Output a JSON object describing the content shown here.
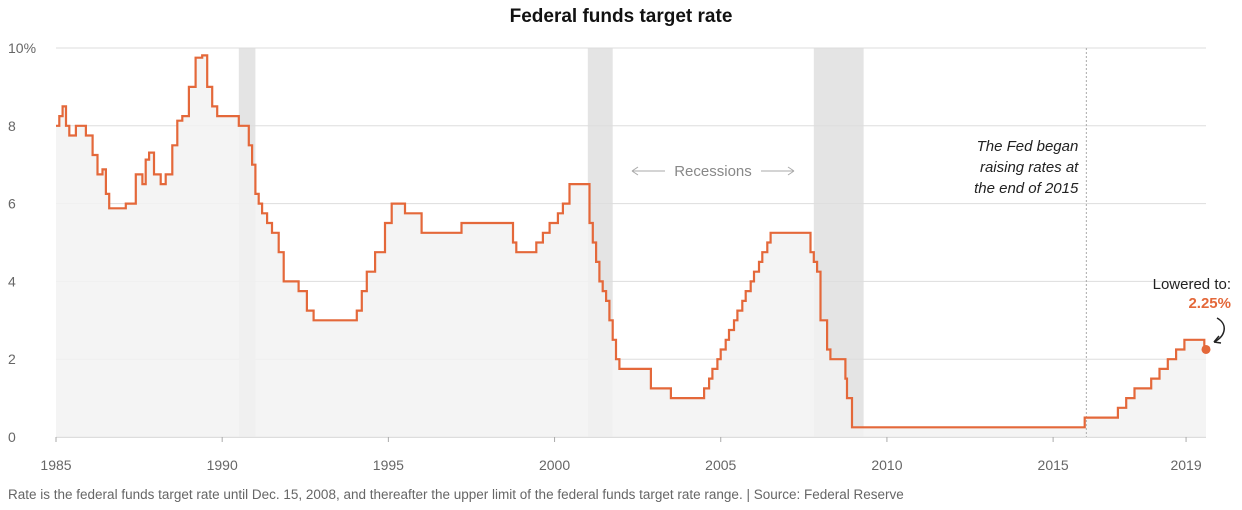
{
  "chart_data": {
    "type": "line",
    "title": "Federal funds target rate",
    "xlabel": "",
    "ylabel": "",
    "xlim": [
      1985,
      2019.6
    ],
    "ylim": [
      0,
      10
    ],
    "y_ticks": [
      {
        "value": 0,
        "label": "0"
      },
      {
        "value": 2,
        "label": "2"
      },
      {
        "value": 4,
        "label": "4"
      },
      {
        "value": 6,
        "label": "6"
      },
      {
        "value": 8,
        "label": "8"
      },
      {
        "value": 10,
        "label": "10%"
      }
    ],
    "x_ticks": [
      {
        "value": 1985,
        "label": "1985"
      },
      {
        "value": 1990,
        "label": "1990"
      },
      {
        "value": 1995,
        "label": "1995"
      },
      {
        "value": 2000,
        "label": "2000"
      },
      {
        "value": 2005,
        "label": "2005"
      },
      {
        "value": 2010,
        "label": "2010"
      },
      {
        "value": 2015,
        "label": "2015"
      },
      {
        "value": 2019,
        "label": "2019"
      }
    ],
    "grid": "horizontal",
    "colors": {
      "line": "#e4683a",
      "area": "#f2f2f2",
      "recession": "#e4e4e4",
      "grid": "#dddddd"
    },
    "recessions": [
      {
        "start": 1990.5,
        "end": 1991.0
      },
      {
        "start": 2001.0,
        "end": 2001.75
      },
      {
        "start": 2007.8,
        "end": 2009.3
      }
    ],
    "recessions_label": "Recessions",
    "series": [
      {
        "name": "",
        "step": true,
        "x": [
          1985.0,
          1985.1,
          1985.2,
          1985.3,
          1985.4,
          1985.5,
          1985.6,
          1985.75,
          1985.9,
          1986.1,
          1986.25,
          1986.4,
          1986.5,
          1986.6,
          1986.75,
          1987.1,
          1987.4,
          1987.6,
          1987.7,
          1987.8,
          1987.95,
          1988.15,
          1988.3,
          1988.5,
          1988.65,
          1988.8,
          1989.0,
          1989.2,
          1989.4,
          1989.55,
          1989.7,
          1989.85,
          1990.0,
          1990.5,
          1990.8,
          1990.9,
          1991.0,
          1991.1,
          1991.2,
          1991.35,
          1991.5,
          1991.7,
          1991.85,
          1992.0,
          1992.3,
          1992.55,
          1992.75,
          1994.05,
          1994.2,
          1994.35,
          1994.6,
          1994.9,
          1995.1,
          1995.5,
          1996.0,
          1997.2,
          1998.75,
          1998.85,
          1998.95,
          1999.45,
          1999.65,
          1999.85,
          2000.1,
          2000.25,
          2000.45,
          2001.05,
          2001.15,
          2001.25,
          2001.35,
          2001.45,
          2001.55,
          2001.65,
          2001.75,
          2001.85,
          2001.95,
          2002.9,
          2003.5,
          2004.5,
          2004.65,
          2004.75,
          2004.9,
          2005.0,
          2005.15,
          2005.25,
          2005.4,
          2005.5,
          2005.65,
          2005.75,
          2005.9,
          2006.0,
          2006.15,
          2006.25,
          2006.4,
          2006.5,
          2007.7,
          2007.8,
          2007.9,
          2008.0,
          2008.2,
          2008.3,
          2008.75,
          2008.8,
          2008.95,
          2015.95,
          2016.95,
          2017.2,
          2017.45,
          2017.95,
          2018.2,
          2018.45,
          2018.7,
          2018.95,
          2019.55,
          2019.6
        ],
        "values": [
          8.0,
          8.25,
          8.5,
          8.0,
          7.75,
          7.75,
          8.0,
          8.0,
          7.75,
          7.25,
          6.75,
          6.88,
          6.25,
          5.88,
          5.88,
          6.0,
          6.75,
          6.5,
          7.13,
          7.31,
          6.75,
          6.5,
          6.75,
          7.5,
          8.13,
          8.25,
          9.0,
          9.75,
          9.81,
          9.0,
          8.5,
          8.25,
          8.25,
          8.0,
          7.5,
          7.0,
          6.25,
          6.0,
          5.75,
          5.5,
          5.25,
          4.75,
          4.0,
          4.0,
          3.75,
          3.25,
          3.0,
          3.25,
          3.75,
          4.25,
          4.75,
          5.5,
          6.0,
          5.75,
          5.25,
          5.5,
          5.0,
          4.75,
          4.75,
          5.0,
          5.25,
          5.5,
          5.75,
          6.0,
          6.5,
          5.5,
          5.0,
          4.5,
          4.0,
          3.75,
          3.5,
          3.0,
          2.5,
          2.0,
          1.75,
          1.25,
          1.0,
          1.25,
          1.5,
          1.75,
          2.0,
          2.25,
          2.5,
          2.75,
          3.0,
          3.25,
          3.5,
          3.75,
          4.0,
          4.25,
          4.5,
          4.75,
          5.0,
          5.25,
          4.75,
          4.5,
          4.25,
          3.0,
          2.25,
          2.0,
          1.5,
          1.0,
          0.25,
          0.5,
          0.75,
          1.0,
          1.25,
          1.5,
          1.75,
          2.0,
          2.25,
          2.5,
          2.25,
          2.25
        ]
      }
    ],
    "annotations": {
      "fed_began": {
        "x": 2016.0,
        "lines": [
          "The Fed began",
          "raising rates at",
          "the end of 2015"
        ]
      },
      "lowered": {
        "x": 2019.6,
        "y": 2.25,
        "label": "Lowered to:",
        "value": "2.25%"
      }
    },
    "source_note": "Rate is the federal funds target rate until Dec. 15, 2008, and thereafter the upper limit of the federal funds target rate range. | Source: Federal Reserve"
  }
}
